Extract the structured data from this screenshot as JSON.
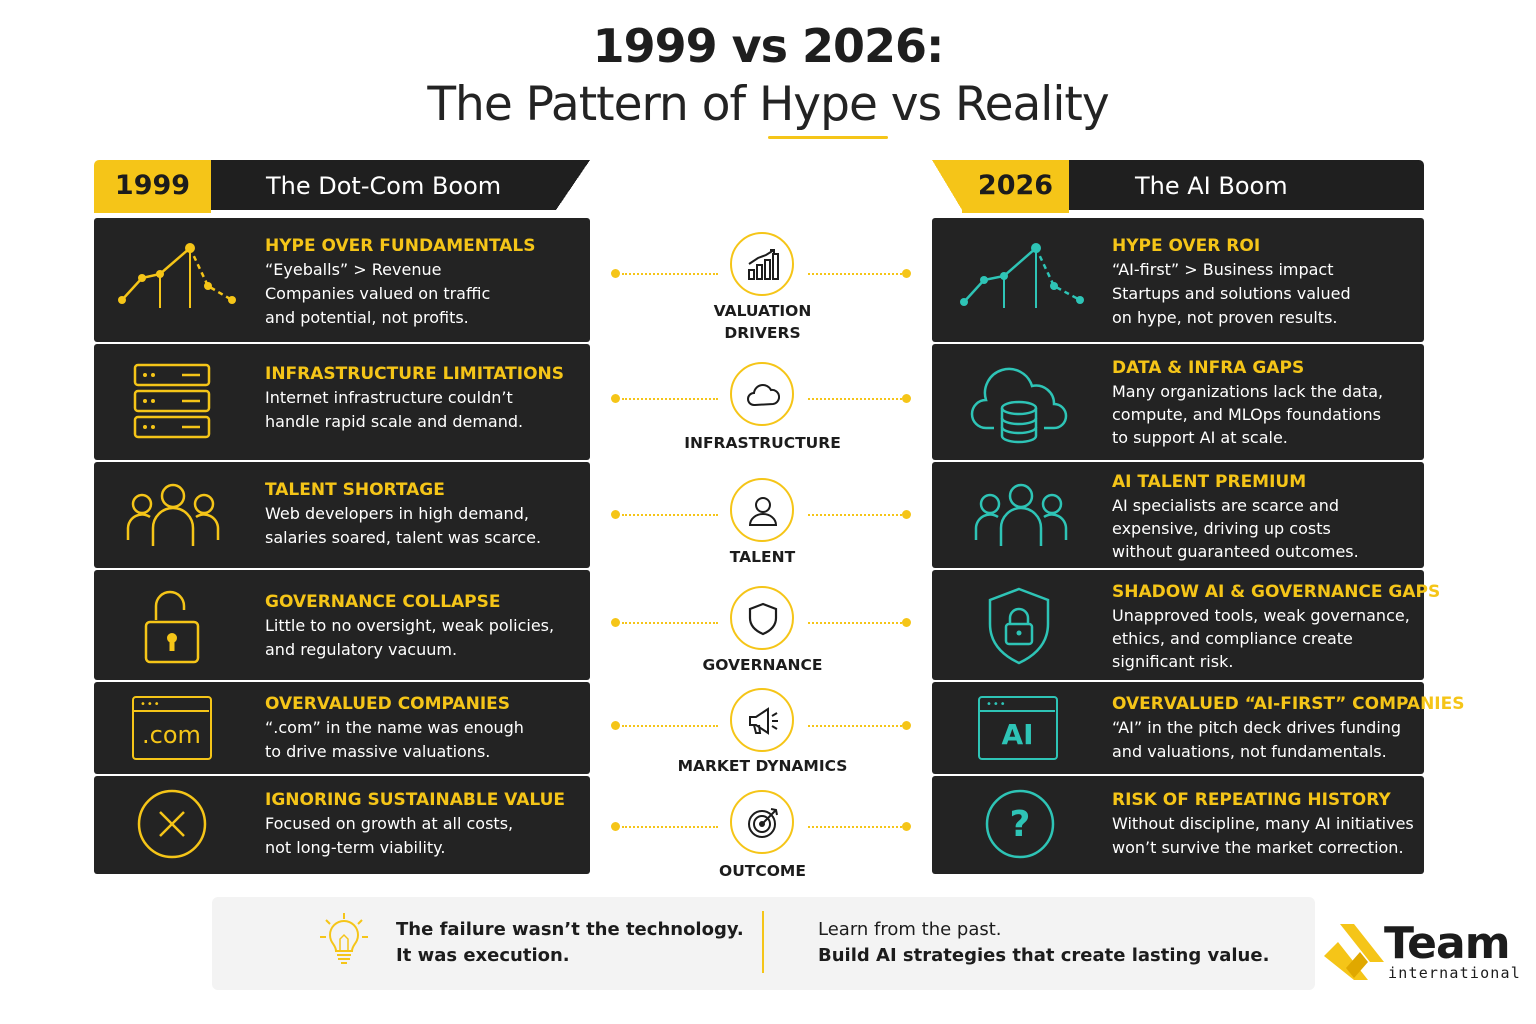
{
  "title": {
    "line1": "1999 vs 2026:",
    "line2": "The Pattern of Hype vs Reality"
  },
  "left": {
    "year": "1999",
    "label": "The Dot-Com Boom",
    "rows": [
      {
        "title": "HYPE OVER FUNDAMENTALS",
        "lines": [
          "“Eyeballs” > Revenue",
          "Companies valued on traffic",
          "and potential, not profits."
        ],
        "icon": "line-chart-icon"
      },
      {
        "title": "INFRASTRUCTURE LIMITATIONS",
        "lines": [
          "Internet infrastructure couldn’t",
          "handle rapid scale and demand."
        ],
        "icon": "server-rack-icon"
      },
      {
        "title": "TALENT SHORTAGE",
        "lines": [
          "Web developers in high demand,",
          "salaries soared, talent was scarce."
        ],
        "icon": "people-group-icon"
      },
      {
        "title": "GOVERNANCE COLLAPSE",
        "lines": [
          "Little to no oversight, weak policies,",
          "and regulatory vacuum."
        ],
        "icon": "unlocked-padlock-icon"
      },
      {
        "title": "OVERVALUED COMPANIES",
        "lines": [
          "“.com” in the name was enough",
          "to drive massive valuations."
        ],
        "icon": "dotcom-browser-icon",
        "icon_text": ".com"
      },
      {
        "title": "IGNORING SUSTAINABLE VALUE",
        "lines": [
          "Focused on growth at all costs,",
          "not long-term viability."
        ],
        "icon": "x-circle-icon"
      }
    ]
  },
  "right": {
    "year": "2026",
    "label": "The AI Boom",
    "rows": [
      {
        "title": "HYPE OVER ROI",
        "lines": [
          "“AI-first” > Business impact",
          "Startups and solutions valued",
          "on hype, not proven results."
        ],
        "icon": "line-chart-icon"
      },
      {
        "title": "DATA & INFRA GAPS",
        "lines": [
          "Many organizations lack the data,",
          "compute, and MLOps foundations",
          "to support AI at scale."
        ],
        "icon": "cloud-database-icon"
      },
      {
        "title": "AI TALENT PREMIUM",
        "lines": [
          "AI specialists are scarce and",
          "expensive, driving up costs",
          "without guaranteed outcomes."
        ],
        "icon": "people-group-icon"
      },
      {
        "title": "SHADOW AI & GOVERNANCE GAPS",
        "lines": [
          "Unapproved tools, weak governance,",
          "ethics, and compliance create",
          "significant risk."
        ],
        "icon": "shield-lock-icon"
      },
      {
        "title": "OVERVALUED “AI-FIRST” COMPANIES",
        "lines": [
          "“AI” in the pitch deck drives funding",
          "and valuations, not fundamentals."
        ],
        "icon": "ai-browser-icon",
        "icon_text": "AI"
      },
      {
        "title": "RISK OF REPEATING HISTORY",
        "lines": [
          "Without discipline, many AI initiatives",
          "won’t survive the market correction."
        ],
        "icon": "question-circle-icon"
      }
    ]
  },
  "center": [
    {
      "label": "VALUATION\nDRIVERS",
      "icon": "bar-chart-icon"
    },
    {
      "label": "INFRASTRUCTURE",
      "icon": "cloud-icon"
    },
    {
      "label": "TALENT",
      "icon": "person-icon"
    },
    {
      "label": "GOVERNANCE",
      "icon": "shield-icon"
    },
    {
      "label": "MARKET DYNAMICS",
      "icon": "megaphone-icon"
    },
    {
      "label": "OUTCOME",
      "icon": "target-icon"
    }
  ],
  "banner": {
    "icon": "lightbulb-icon",
    "left_line1": "The failure wasn’t the technology.",
    "left_line2": "It was execution.",
    "right_line1": "Learn from the past.",
    "right_line2": "Build AI strategies that create lasting value."
  },
  "logo": {
    "word": "Team",
    "sub": "international",
    "icon": "team-international-logo-icon"
  },
  "colors": {
    "accent": "#f5c518",
    "teal": "#2ec4b6",
    "panel": "#232323",
    "header": "#1f1f1f"
  }
}
